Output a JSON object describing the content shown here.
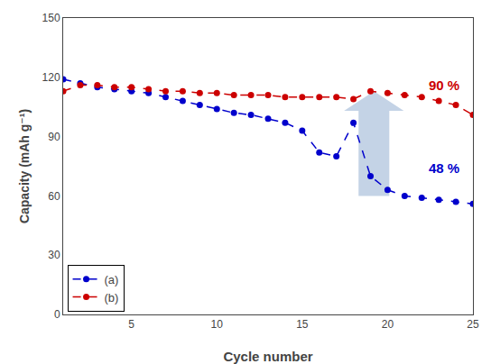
{
  "chart_data": {
    "type": "line",
    "x_label": "Cycle number",
    "y_label": "Capacity (mAh g⁻¹)",
    "x": [
      1,
      2,
      3,
      4,
      5,
      6,
      7,
      8,
      9,
      10,
      11,
      12,
      13,
      14,
      15,
      16,
      17,
      18,
      19,
      20,
      21,
      22,
      23,
      24,
      25
    ],
    "series": [
      {
        "name": "(a)",
        "color": "#0000CC",
        "marker": "circle",
        "line_style": "dashed",
        "values": [
          119,
          117,
          115,
          114,
          113,
          112,
          110,
          108,
          106,
          104,
          102,
          101,
          99,
          97,
          93,
          82,
          80,
          97,
          70,
          63,
          60,
          59,
          58,
          57,
          56
        ]
      },
      {
        "name": "(b)",
        "color": "#CC0000",
        "marker": "circle",
        "line_style": "dashed",
        "values": [
          113,
          116,
          116,
          115,
          115,
          114,
          113,
          113,
          112,
          112,
          111,
          111,
          111,
          110,
          110,
          110,
          110,
          109,
          113,
          112,
          111,
          110,
          108,
          106,
          101
        ]
      }
    ],
    "xlim": [
      1,
      25
    ],
    "ylim": [
      0,
      150
    ],
    "xticks": [
      5,
      10,
      15,
      20,
      25
    ],
    "yticks": [
      0,
      30,
      60,
      90,
      120,
      150
    ],
    "grid": false,
    "legend": "lower left",
    "annotations": [
      {
        "text": "90 %",
        "x": 22.3,
        "y": 116,
        "color": "#CC0000"
      },
      {
        "text": "48 %",
        "x": 22.3,
        "y": 74,
        "color": "#0000CC"
      }
    ],
    "arrows": [
      {
        "x": 19.2,
        "y_from": 60,
        "y_to": 113,
        "color": "#b0c4de"
      }
    ]
  }
}
